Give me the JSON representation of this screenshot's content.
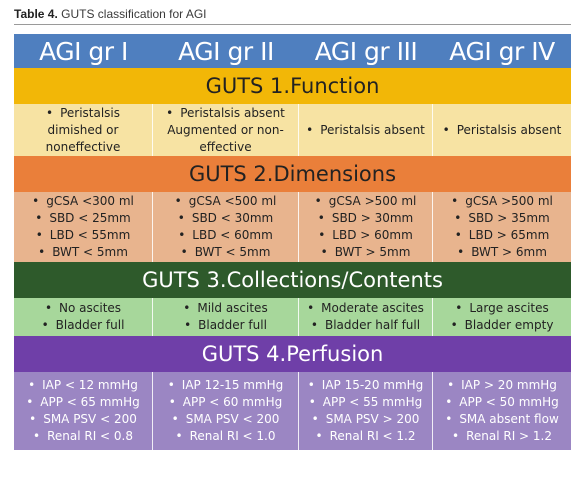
{
  "caption": {
    "label": "Table 4.",
    "text": "GUTS classification for AGI"
  },
  "colors": {
    "header": "#4f7fbf",
    "function_banner": "#f2b707",
    "function_row": "#f7e3a3",
    "dimensions_banner": "#ea7f3a",
    "dimensions_row": "#e8b48e",
    "collections_banner": "#2e5a2b",
    "collections_row": "#a7d79b",
    "perfusion_banner": "#6f3fa8",
    "perfusion_row": "#9b86c3"
  },
  "header": [
    "AGI gr I",
    "AGI gr II",
    "AGI gr III",
    "AGI gr IV"
  ],
  "sections": [
    {
      "title": "GUTS 1.Function",
      "cells": [
        [
          "Peristalsis dimished or noneffective"
        ],
        [
          "Peristalsis absent Augmented or non-effective"
        ],
        [
          "Peristalsis absent"
        ],
        [
          "Peristalsis absent"
        ]
      ]
    },
    {
      "title": "GUTS 2.Dimensions",
      "cells": [
        [
          "gCSA <300 ml",
          "SBD < 25mm",
          "LBD < 55mm",
          "BWT < 5mm"
        ],
        [
          "gCSA <500 ml",
          "SBD < 30mm",
          "LBD < 60mm",
          "BWT < 5mm"
        ],
        [
          "gCSA >500 ml",
          "SBD > 30mm",
          "LBD > 60mm",
          "BWT > 5mm"
        ],
        [
          "gCSA >500 ml",
          "SBD > 35mm",
          "LBD > 65mm",
          "BWT > 6mm"
        ]
      ]
    },
    {
      "title": "GUTS 3.Collections/Contents",
      "cells": [
        [
          "No ascites",
          "Bladder full"
        ],
        [
          "Mild ascites",
          "Bladder full"
        ],
        [
          "Moderate ascites",
          "Bladder half full"
        ],
        [
          "Large ascites",
          "Bladder empty"
        ]
      ]
    },
    {
      "title": "GUTS 4.Perfusion",
      "cells": [
        [
          "IAP < 12 mmHg",
          "APP < 65 mmHg",
          "SMA PSV < 200",
          "Renal RI < 0.8"
        ],
        [
          "IAP 12-15 mmHg",
          "APP < 60 mmHg",
          "SMA PSV < 200",
          "Renal RI < 1.0"
        ],
        [
          "IAP 15-20 mmHg",
          "APP < 55 mmHg",
          "SMA PSV > 200",
          "Renal RI < 1.2"
        ],
        [
          "IAP > 20 mmHg",
          "APP < 50 mmHg",
          "SMA absent flow",
          "Renal RI > 1.2"
        ]
      ]
    }
  ]
}
